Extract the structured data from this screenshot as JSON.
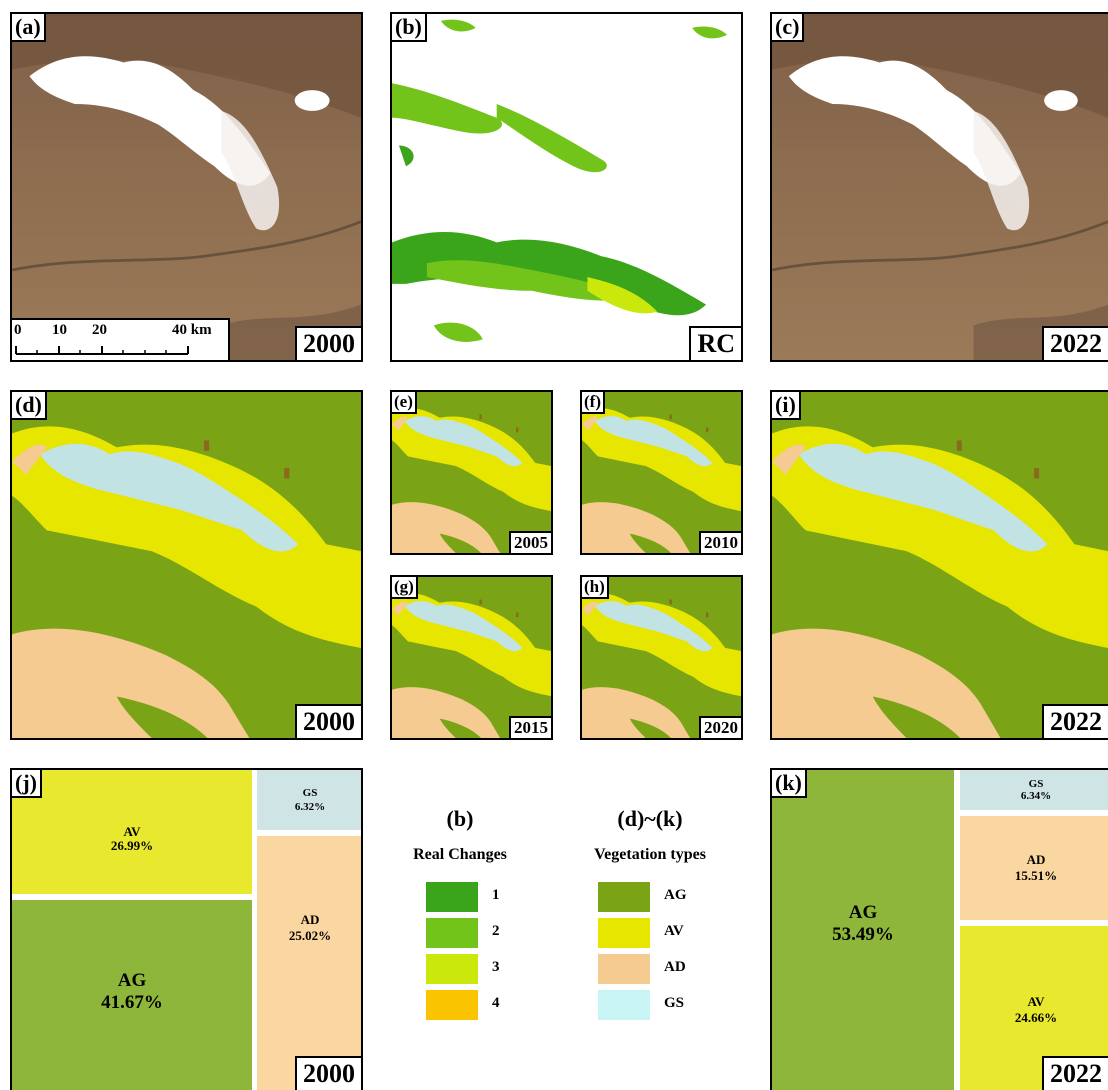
{
  "colors": {
    "ag": "#7aa416",
    "av": "#e6e600",
    "ad": "#f5cb91",
    "gs": "#c2e3e3",
    "treemap_ag": "#8db63a",
    "treemap_av": "#e8e82e",
    "treemap_ad": "#fad6a0",
    "treemap_gs": "#cfe4e5",
    "rc1": "#3aa41a",
    "rc2": "#72c41a",
    "rc3": "#cbe80c",
    "rc4": "#fbc400",
    "soil": "#8d6b4c",
    "snow": "#ffffff"
  },
  "panels": {
    "a": {
      "label": "(a)",
      "year": "2000",
      "scale_ticks": [
        "0",
        "10",
        "20",
        "40 km"
      ]
    },
    "b": {
      "label": "(b)",
      "tag": "RC"
    },
    "c": {
      "label": "(c)",
      "year": "2022"
    },
    "d": {
      "label": "(d)",
      "year": "2000"
    },
    "e": {
      "label": "(e)",
      "year": "2005"
    },
    "f": {
      "label": "(f)",
      "year": "2010"
    },
    "g": {
      "label": "(g)",
      "year": "2015"
    },
    "h": {
      "label": "(h)",
      "year": "2020"
    },
    "i": {
      "label": "(i)",
      "year": "2022"
    },
    "j": {
      "label": "(j)",
      "year": "2000",
      "items": [
        {
          "name": "AV",
          "pct": "26.99%"
        },
        {
          "name": "GS",
          "pct": "6.32%"
        },
        {
          "name": "AG",
          "pct": "41.67%"
        },
        {
          "name": "AD",
          "pct": "25.02%"
        }
      ]
    },
    "k": {
      "label": "(k)",
      "year": "2022",
      "items": [
        {
          "name": "AG",
          "pct": "53.49%"
        },
        {
          "name": "GS",
          "pct": "6.34%"
        },
        {
          "name": "AD",
          "pct": "15.51%"
        },
        {
          "name": "AV",
          "pct": "24.66%"
        }
      ]
    }
  },
  "legend": {
    "left_head": "(b)",
    "left_title": "Real Changes",
    "left_items": [
      "1",
      "2",
      "3",
      "4"
    ],
    "right_head": "(d)~(k)",
    "right_title": "Vegetation types",
    "right_items": [
      "AG",
      "AV",
      "AD",
      "GS"
    ]
  }
}
